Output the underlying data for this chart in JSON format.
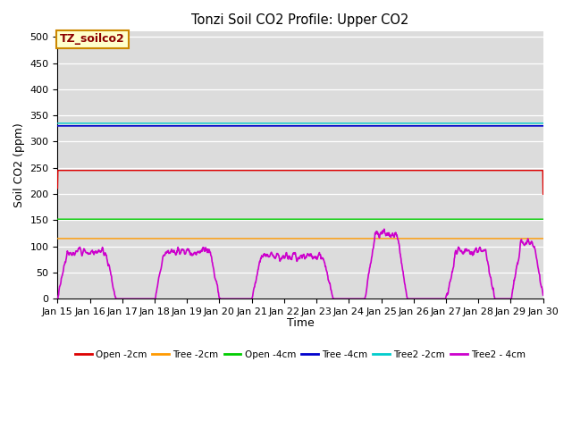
{
  "title": "Tonzi Soil CO2 Profile: Upper CO2",
  "ylabel": "Soil CO2 (ppm)",
  "xlabel": "Time",
  "annotation": "TZ_soilco2",
  "ylim": [
    0,
    510
  ],
  "yticks": [
    0,
    50,
    100,
    150,
    200,
    250,
    300,
    350,
    400,
    450,
    500
  ],
  "xtick_labels": [
    "Jan 15",
    "Jan 16",
    "Jan 17",
    "Jan 18",
    "Jan 19",
    "Jan 20",
    "Jan 21",
    "Jan 22",
    "Jan 23",
    "Jan 24",
    "Jan 25",
    "Jan 26",
    "Jan 27",
    "Jan 28",
    "Jan 29",
    "Jan 30"
  ],
  "bg_color": "#dcdcdc",
  "series_colors": {
    "Open -2cm": "#dd0000",
    "Tree -2cm": "#ff9900",
    "Open -4cm": "#00cc00",
    "Tree -4cm": "#0000cc",
    "Tree2 -2cm": "#00cccc",
    "Tree2 - 4cm": "#cc00cc"
  },
  "legend_ncol": 6,
  "seed": 12345
}
